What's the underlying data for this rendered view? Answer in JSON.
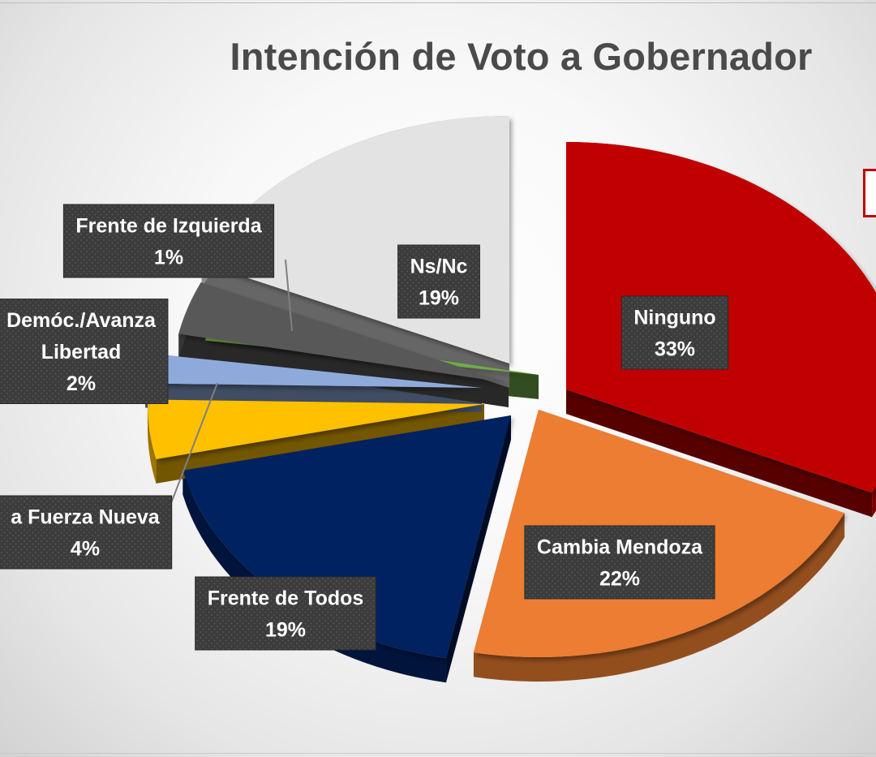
{
  "chart_data": {
    "type": "pie",
    "style": "3d-exploded",
    "title": "Intención de Voto a Gobernador",
    "slices": [
      {
        "label_lines": [
          "Ninguno"
        ],
        "value": 33,
        "value_label": "33%",
        "color": "#c00000"
      },
      {
        "label_lines": [
          "Cambia Mendoza"
        ],
        "value": 22,
        "value_label": "22%",
        "color": "#ed7d31"
      },
      {
        "label_lines": [
          "Frente de Todos"
        ],
        "value": 19,
        "value_label": "19%",
        "color": "#002060"
      },
      {
        "label_lines": [
          "a Fuerza Nueva"
        ],
        "value": 4,
        "value_label": "4%",
        "color": "#ffc000"
      },
      {
        "label_lines": [
          "Demóc./Avanza",
          "Libertad"
        ],
        "value": 2,
        "value_label": "2%",
        "color": "#8eaadb"
      },
      {
        "label_lines": [
          "Frente de Izquierda"
        ],
        "value": 1,
        "value_label": "1%",
        "color": "#70ad47"
      },
      {
        "label_lines": [
          ""
        ],
        "value": 0,
        "value_label": "",
        "color": "#595959"
      },
      {
        "label_lines": [
          "Ns/Nc"
        ],
        "value": 19,
        "value_label": "19%",
        "color": "#e3e3e3"
      }
    ],
    "legend": "none"
  }
}
